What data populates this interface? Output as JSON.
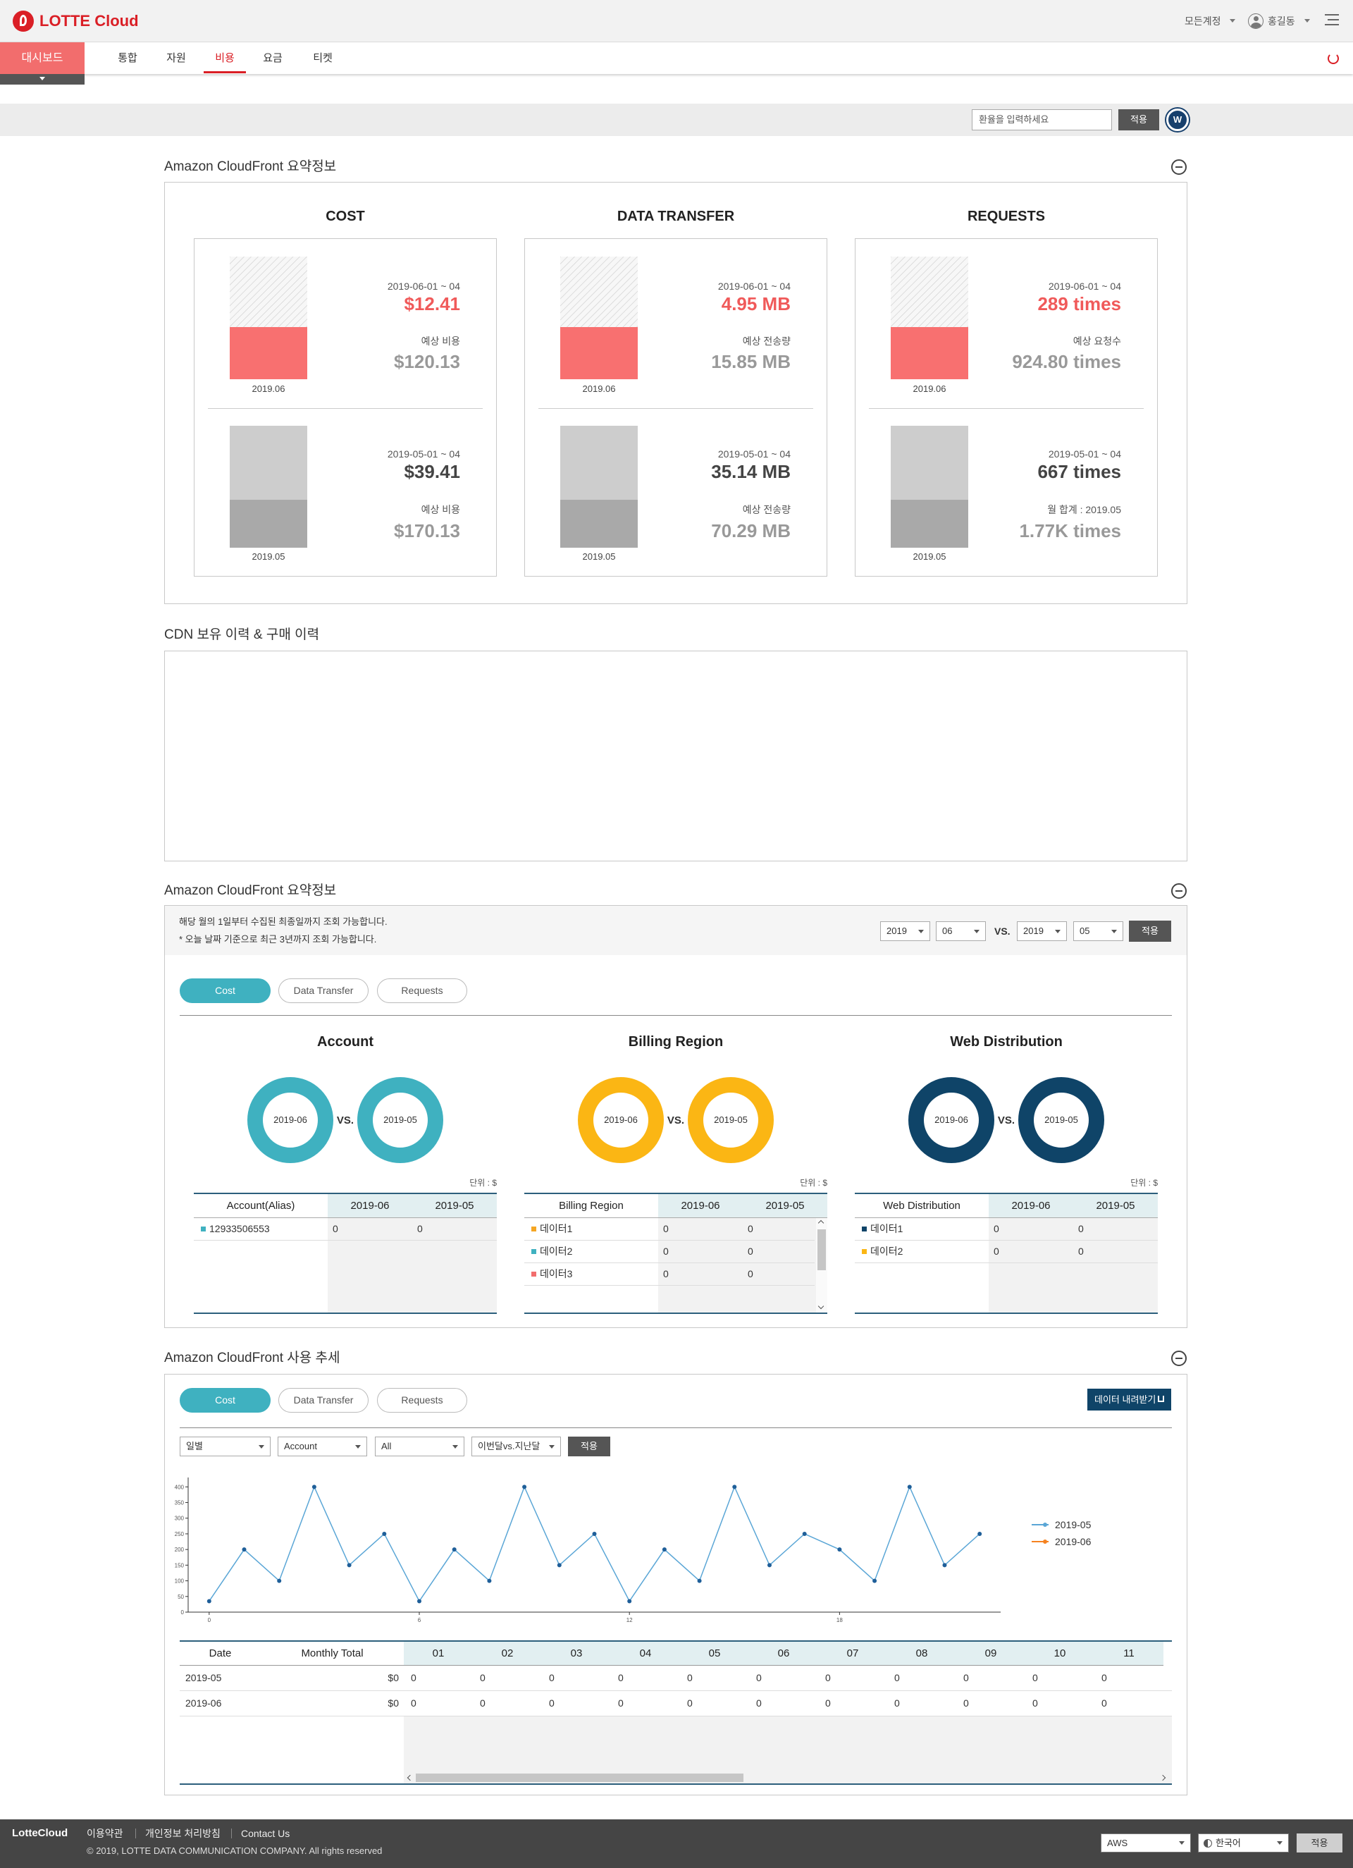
{
  "header": {
    "logo": "LOTTE Cloud",
    "account": "모든계정",
    "user": "홍길동"
  },
  "nav": {
    "home": "대시보드",
    "tabs": [
      "통합",
      "자원",
      "비용",
      "요금",
      "티켓"
    ]
  },
  "toolbar": {
    "placeholder": "환율을 입력하세요",
    "apply": "적용",
    "badge": "W"
  },
  "summary": {
    "title": "Amazon CloudFront 요약정보",
    "cards": [
      {
        "title": "COST",
        "current": {
          "period": "2019-06-01 ~ 04",
          "value": "$12.41",
          "est_label": "예상 비용",
          "est_value": "$120.13",
          "month": "2019.06"
        },
        "previous": {
          "period": "2019-05-01 ~ 04",
          "value": "$39.41",
          "est_label": "예상 비용",
          "est_value": "$170.13",
          "month": "2019.05"
        }
      },
      {
        "title": "DATA TRANSFER",
        "current": {
          "period": "2019-06-01 ~ 04",
          "value": "4.95 MB",
          "est_label": "예상 전송량",
          "est_value": "15.85 MB",
          "month": "2019.06"
        },
        "previous": {
          "period": "2019-05-01 ~ 04",
          "value": "35.14 MB",
          "est_label": "예상 전송량",
          "est_value": "70.29 MB",
          "month": "2019.05"
        }
      },
      {
        "title": "REQUESTS",
        "current": {
          "period": "2019-06-01 ~ 04",
          "value": "289 times",
          "est_label": "예상 요청수",
          "est_value": "924.80 times",
          "month": "2019.06"
        },
        "previous": {
          "period": "2019-05-01 ~ 04",
          "value": "667 times",
          "est_label": "월 합계 : 2019.05",
          "est_value": "1.77K times",
          "month": "2019.05"
        }
      }
    ]
  },
  "history": {
    "title": "CDN 보유 이력 & 구매 이력"
  },
  "detail": {
    "title": "Amazon CloudFront 요약정보",
    "notes": [
      "해당 월의 1일부터 수집된 최종일까지 조회 가능합니다.",
      "* 오늘 날짜 기준으로 최근 3년까지 조회 가능합니다."
    ],
    "selects": [
      "2019",
      "06",
      "2019",
      "05"
    ],
    "vs": "VS.",
    "apply": "적용",
    "tabs": [
      "Cost",
      "Data Transfer",
      "Requests"
    ],
    "panels": [
      {
        "title": "Account",
        "color": "#3fb1c0",
        "donuts": [
          "2019-06",
          "2019-05"
        ],
        "vs": "VS.",
        "unit": "단위 : $",
        "columns": [
          "Account(Alias)",
          "2019-06",
          "2019-05"
        ],
        "rows": [
          [
            "12933506553",
            0,
            0
          ]
        ],
        "row_colors": [
          "#3fb1c0"
        ]
      },
      {
        "title": "Billing Region",
        "color": "#fbb614",
        "donuts": [
          "2019-06",
          "2019-05"
        ],
        "vs": "VS.",
        "unit": "단위 : $",
        "columns": [
          "Billing Region",
          "2019-06",
          "2019-05"
        ],
        "rows": [
          [
            "데이터1",
            0,
            0
          ],
          [
            "데이터2",
            0,
            0
          ],
          [
            "데이터3",
            0,
            0
          ]
        ],
        "row_colors": [
          "#f5a623",
          "#3fb1c0",
          "#f26d6d"
        ]
      },
      {
        "title": "Web Distribution",
        "color": "#0f4468",
        "donuts": [
          "2019-06",
          "2019-05"
        ],
        "vs": "VS.",
        "unit": "단위 : $",
        "columns": [
          "Web Distribution",
          "2019-06",
          "2019-05"
        ],
        "rows": [
          [
            "데이터1",
            0,
            0
          ],
          [
            "데이터2",
            0,
            0
          ]
        ],
        "row_colors": [
          "#0f4468",
          "#fbb614"
        ]
      }
    ]
  },
  "trend": {
    "title": "Amazon CloudFront 사용 추세",
    "tabs": [
      "Cost",
      "Data Transfer",
      "Requests"
    ],
    "download": "데이터 내려받기",
    "filters": [
      "일별",
      "Account",
      "All",
      "이번달vs.지난달"
    ],
    "apply": "적용",
    "table": {
      "columns": [
        "Date",
        "Monthly Total",
        "01",
        "02",
        "03",
        "04",
        "05",
        "06",
        "07",
        "08",
        "09",
        "10",
        "11"
      ],
      "rows": [
        [
          "2019-05",
          "$0",
          0,
          0,
          0,
          0,
          0,
          0,
          0,
          0,
          0,
          0,
          0
        ],
        [
          "2019-06",
          "$0",
          0,
          0,
          0,
          0,
          0,
          0,
          0,
          0,
          0,
          0,
          0
        ]
      ]
    }
  },
  "chart_data": {
    "type": "line",
    "x": [
      0,
      1,
      2,
      3,
      4,
      5,
      6,
      7,
      8,
      9,
      10,
      11,
      12,
      13,
      14,
      15,
      16,
      17,
      18,
      19,
      20,
      21,
      22
    ],
    "series": [
      {
        "name": "2019-05",
        "color": "#5aa6d6",
        "values": [
          35,
          200,
          100,
          400,
          150,
          250,
          35,
          200,
          100,
          400,
          150,
          250,
          35,
          200,
          100,
          400,
          150,
          250,
          200,
          100,
          400,
          150,
          250
        ]
      },
      {
        "name": "2019-06",
        "color": "#f58220",
        "values": [
          null,
          null,
          null,
          null,
          null,
          null,
          null,
          null,
          null,
          null,
          null,
          null,
          null,
          null,
          null,
          null,
          null,
          null,
          null,
          null,
          null,
          null,
          null
        ]
      }
    ],
    "xlim": [
      -0.6,
      22.6
    ],
    "ylim": [
      0,
      430
    ],
    "xticks": [
      0,
      6,
      12,
      18
    ],
    "yticks": [
      0,
      50,
      100,
      150,
      200,
      250,
      300,
      350,
      400
    ],
    "legend": "right"
  },
  "footer": {
    "brand": "LotteCloud",
    "links": [
      "이용약관",
      "개인정보 처리방침",
      "Contact Us"
    ],
    "copyright": "© 2019, LOTTE DATA COMMUNICATION COMPANY. All rights reserved",
    "selects": [
      "AWS",
      "한국어"
    ],
    "apply": "적용"
  }
}
